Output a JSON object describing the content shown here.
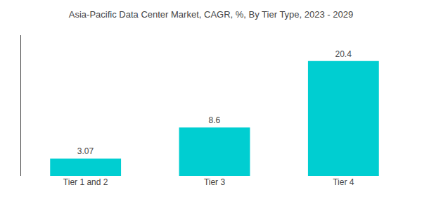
{
  "chart_data": {
    "type": "bar",
    "title": "Asia-Pacific Data Center Market, CAGR, %, By Tier Type, 2023 - 2029",
    "categories": [
      "Tier 1 and 2",
      "Tier 3",
      "Tier 4"
    ],
    "values": [
      3.07,
      8.6,
      20.4
    ],
    "color": "#00CED1",
    "ylim": [
      0,
      25
    ],
    "grid": false,
    "data_labels": true,
    "tick_labels": "x"
  }
}
